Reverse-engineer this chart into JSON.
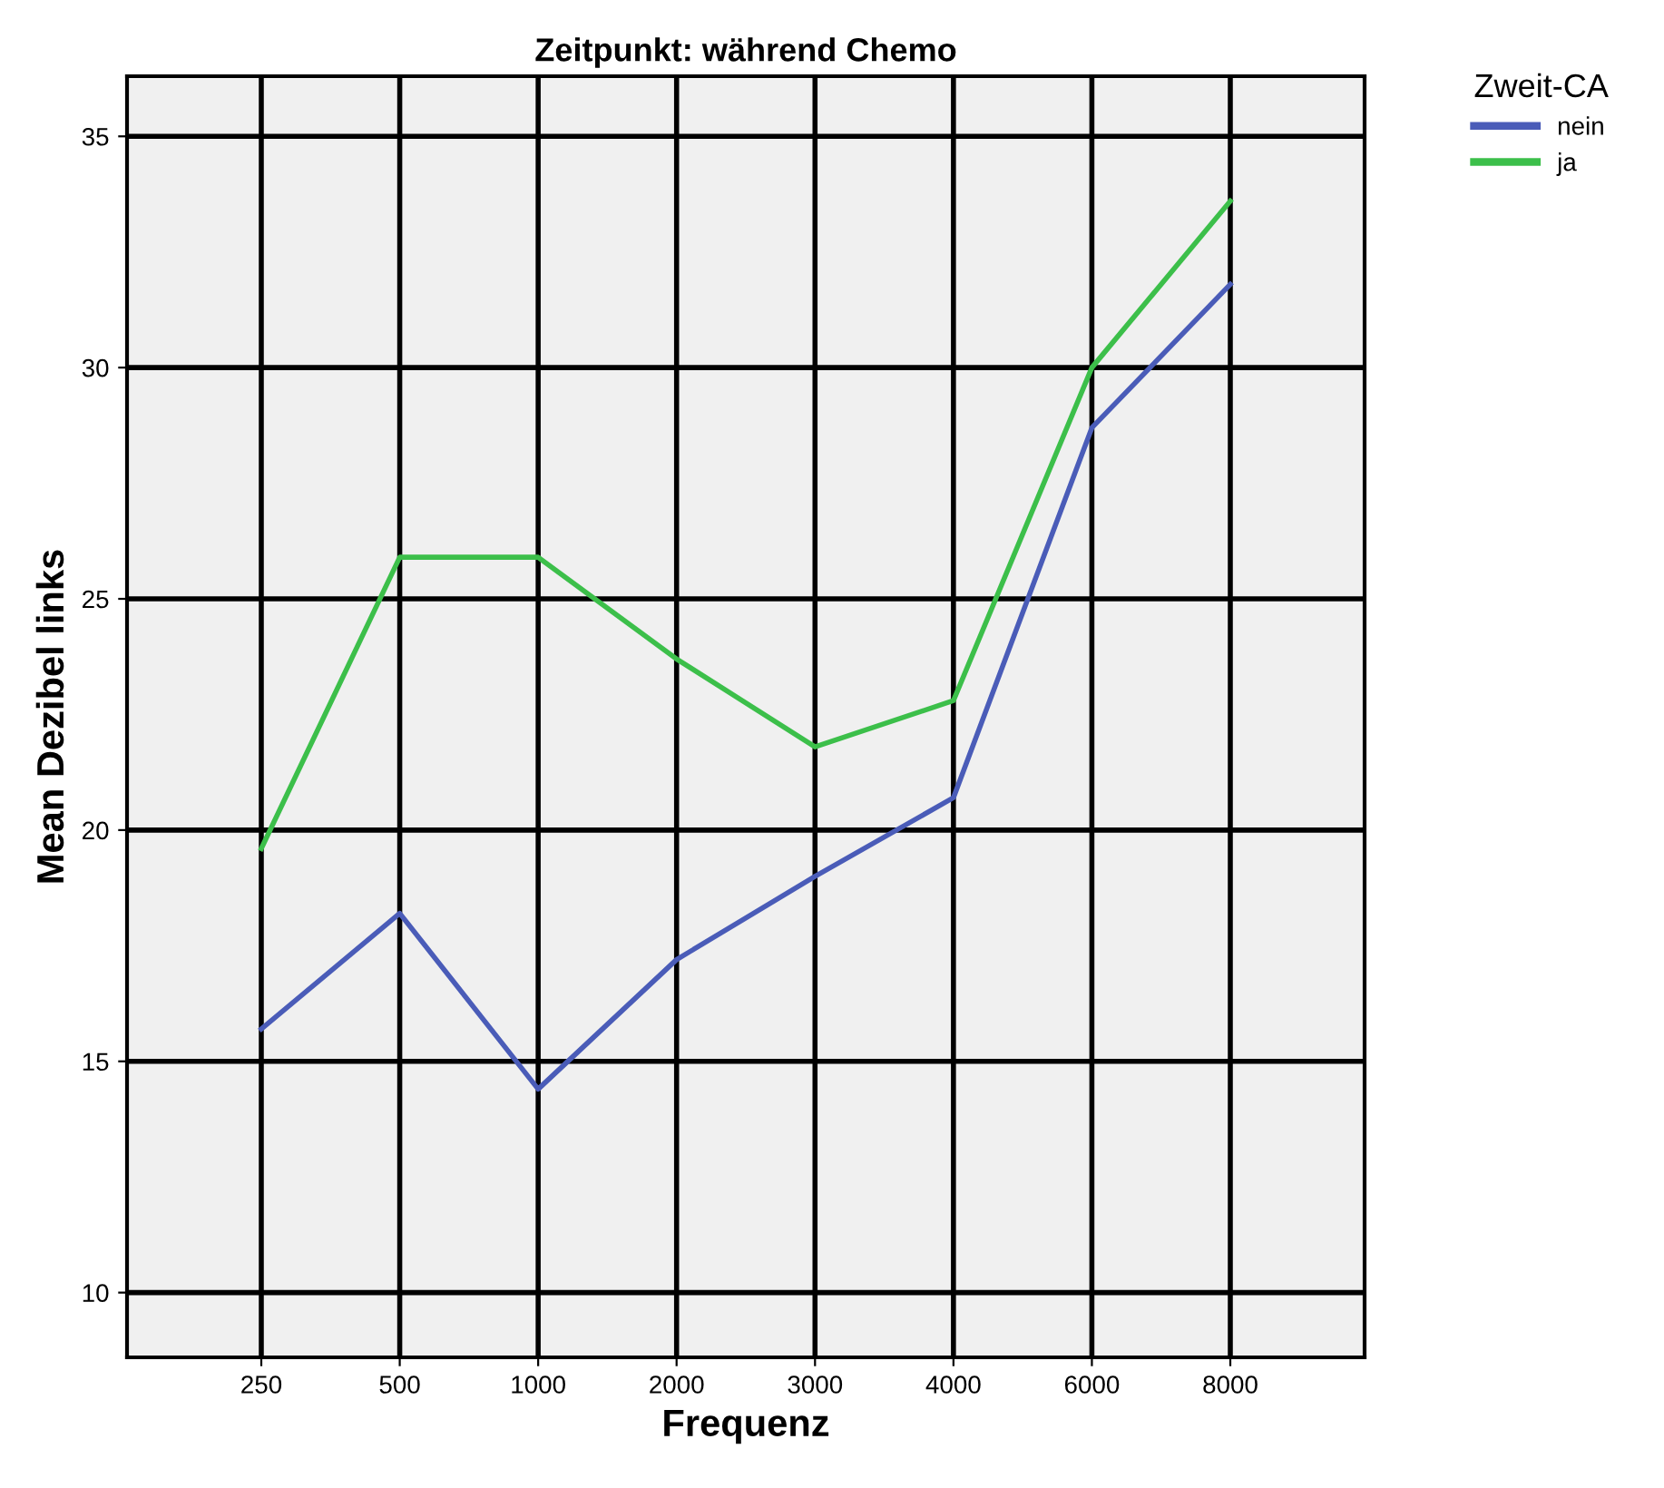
{
  "chart_data": {
    "type": "line",
    "title": "Zeitpunkt: während Chemo",
    "xlabel": "Frequenz",
    "ylabel": "Mean Dezibel links",
    "legend_title": "Zweit-CA",
    "categories": [
      "250",
      "500",
      "1000",
      "2000",
      "3000",
      "4000",
      "6000",
      "8000"
    ],
    "series": [
      {
        "name": "nein",
        "color": "#4a5cb8",
        "values": [
          15.7,
          18.2,
          14.4,
          17.2,
          19.0,
          20.7,
          28.7,
          31.8
        ]
      },
      {
        "name": "ja",
        "color": "#3cbf4a",
        "values": [
          19.6,
          25.9,
          25.9,
          23.7,
          21.8,
          22.8,
          30.0,
          33.6
        ]
      }
    ],
    "ylim": [
      8.6,
      36.3
    ],
    "yticks": [
      10,
      15,
      20,
      25,
      30,
      35
    ],
    "grid": true,
    "legend": "top right",
    "marker": "none",
    "line_style": "solid"
  }
}
